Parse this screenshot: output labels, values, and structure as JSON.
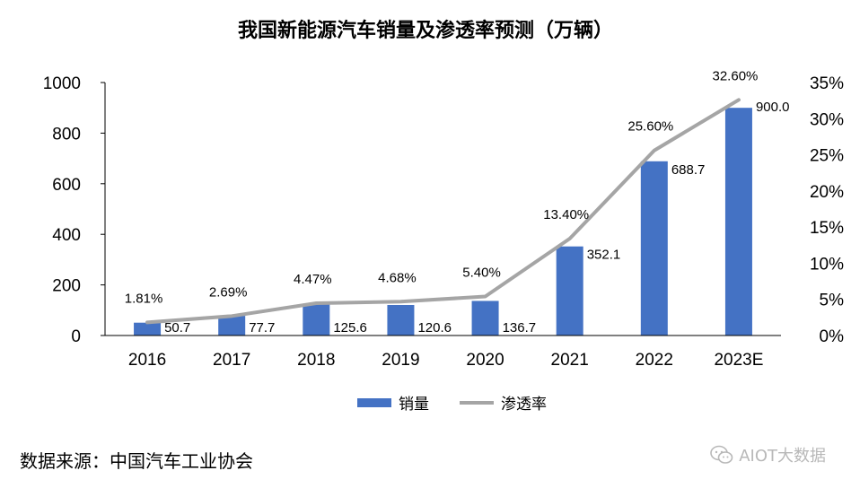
{
  "title": "我国新能源汽车销量及渗透率预测（万辆）",
  "source_note": "数据来源：中国汽车工业协会",
  "watermark": "AIOT大数据",
  "colors": {
    "bar": "#4472C4",
    "line": "#A5A5A5",
    "axis": "#000000"
  },
  "chart_data": {
    "type": "bar",
    "categories": [
      "2016",
      "2017",
      "2018",
      "2019",
      "2020",
      "2021",
      "2022",
      "2023E"
    ],
    "series": [
      {
        "name": "销量",
        "type": "bar",
        "axis": "left",
        "values": [
          50.7,
          77.7,
          125.6,
          120.6,
          136.7,
          352.1,
          688.7,
          900.0
        ],
        "labels": [
          "50.7",
          "77.7",
          "125.6",
          "120.6",
          "136.7",
          "352.1",
          "688.7",
          "900.0"
        ]
      },
      {
        "name": "渗透率",
        "type": "line",
        "axis": "right",
        "values": [
          1.81,
          2.69,
          4.47,
          4.68,
          5.4,
          13.4,
          25.6,
          32.6
        ],
        "labels": [
          "1.81%",
          "2.69%",
          "4.47%",
          "4.68%",
          "5.40%",
          "13.40%",
          "25.60%",
          "32.60%"
        ]
      }
    ],
    "y_left": {
      "ylim": [
        0,
        1000
      ],
      "ticks": [
        "0",
        "200",
        "400",
        "600",
        "800",
        "1000"
      ]
    },
    "y_right": {
      "ylim": [
        0,
        35
      ],
      "ticks": [
        "0%",
        "5%",
        "10%",
        "15%",
        "20%",
        "25%",
        "30%",
        "35%"
      ]
    },
    "grid": false,
    "legend_position": "bottom"
  }
}
